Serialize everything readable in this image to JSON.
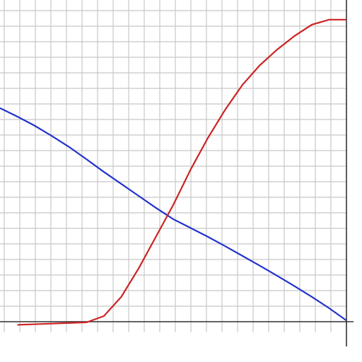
{
  "chart_data": {
    "type": "line",
    "x": [
      0,
      5,
      10,
      15,
      20,
      25,
      30,
      35,
      40,
      45,
      50,
      55,
      60,
      65,
      70,
      75,
      80,
      85,
      90,
      95,
      100
    ],
    "series": [
      {
        "color": "#2233cc",
        "values": [
          67.9,
          65.2,
          62.3,
          59,
          55.5,
          51.6,
          47.6,
          43.8,
          40.0,
          36.2,
          32.6,
          29.8,
          27.0,
          24,
          20.9,
          17.8,
          14.6,
          11.3,
          7.9,
          4.3,
          0.4
        ]
      },
      {
        "color": "#cc2222",
        "values": [
          null,
          -1.0,
          -0.8,
          -0.6,
          -0.4,
          -0.2,
          1.8,
          7.9,
          16.9,
          27.0,
          37.1,
          48.3,
          58.4,
          67.4,
          75.3,
          81.5,
          86.5,
          90.8,
          94.4,
          96,
          96
        ]
      }
    ],
    "xlim": [
      0,
      100
    ],
    "ylim": [
      0,
      100
    ],
    "grid": true
  }
}
